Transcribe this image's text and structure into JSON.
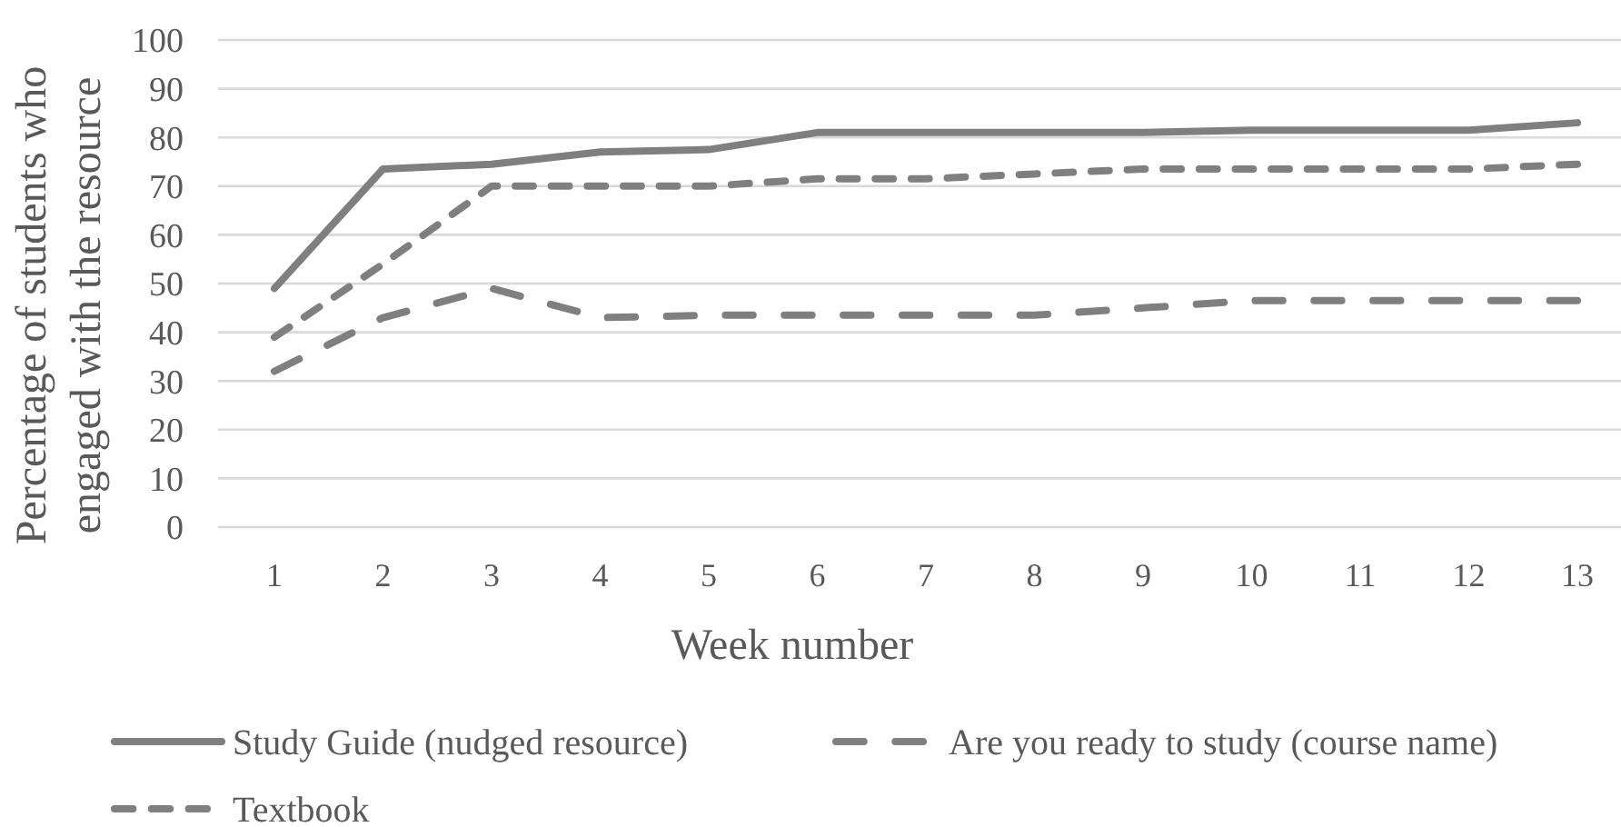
{
  "chart_data": {
    "type": "line",
    "xlabel": "Week number",
    "ylabel": "Percentage of students who engaged with the resource",
    "categories": [
      "1",
      "2",
      "3",
      "4",
      "5",
      "6",
      "7",
      "8",
      "9",
      "10",
      "11",
      "12",
      "13"
    ],
    "series": [
      {
        "name": "Study Guide (nudged resource)",
        "color": "#7f7f7f",
        "line_style": "solid",
        "values": [
          49,
          73.5,
          74.5,
          77,
          77.5,
          81,
          81,
          81,
          81,
          81.5,
          81.5,
          81.5,
          83
        ]
      },
      {
        "name": "Are you ready to study (course name)",
        "color": "#7f7f7f",
        "line_style": "dashed",
        "values": [
          32,
          43,
          49,
          43,
          43.5,
          43.5,
          43.5,
          43.5,
          45,
          46.5,
          46.5,
          46.5,
          46.5
        ]
      },
      {
        "name": "Textbook",
        "color": "#7f7f7f",
        "line_style": "dashed",
        "values": [
          39,
          54,
          70,
          70,
          70,
          71.5,
          71.5,
          72.5,
          73.5,
          73.5,
          73.5,
          73.5,
          74.5
        ]
      }
    ],
    "ylim": [
      0,
      100
    ],
    "yticks": [
      0,
      10,
      20,
      30,
      40,
      50,
      60,
      70,
      80,
      90,
      100
    ],
    "grid": "y",
    "legend": "bottom"
  }
}
